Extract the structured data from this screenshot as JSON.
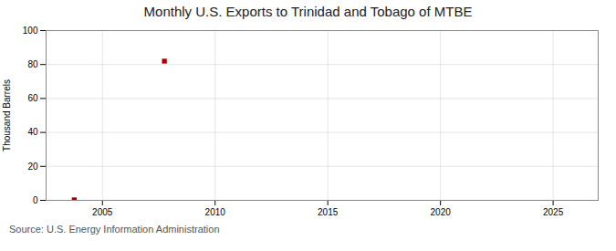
{
  "chart_data": {
    "type": "scatter",
    "title": "Monthly U.S. Exports to Trinidad and Tobago of MTBE",
    "ylabel": "Thousand Barrels",
    "source": "Source: U.S. Energy Information Administration",
    "x": [
      2003.75,
      2007.75
    ],
    "values": [
      0.3,
      82
    ],
    "color": "#aa0000",
    "marker": "square",
    "xlim": [
      2002.5,
      2027
    ],
    "ylim": [
      0,
      100
    ],
    "xticks": [
      2005,
      2010,
      2015,
      2020,
      2025
    ],
    "yticks": [
      0,
      20,
      40,
      60,
      80,
      100
    ],
    "grid": true
  }
}
